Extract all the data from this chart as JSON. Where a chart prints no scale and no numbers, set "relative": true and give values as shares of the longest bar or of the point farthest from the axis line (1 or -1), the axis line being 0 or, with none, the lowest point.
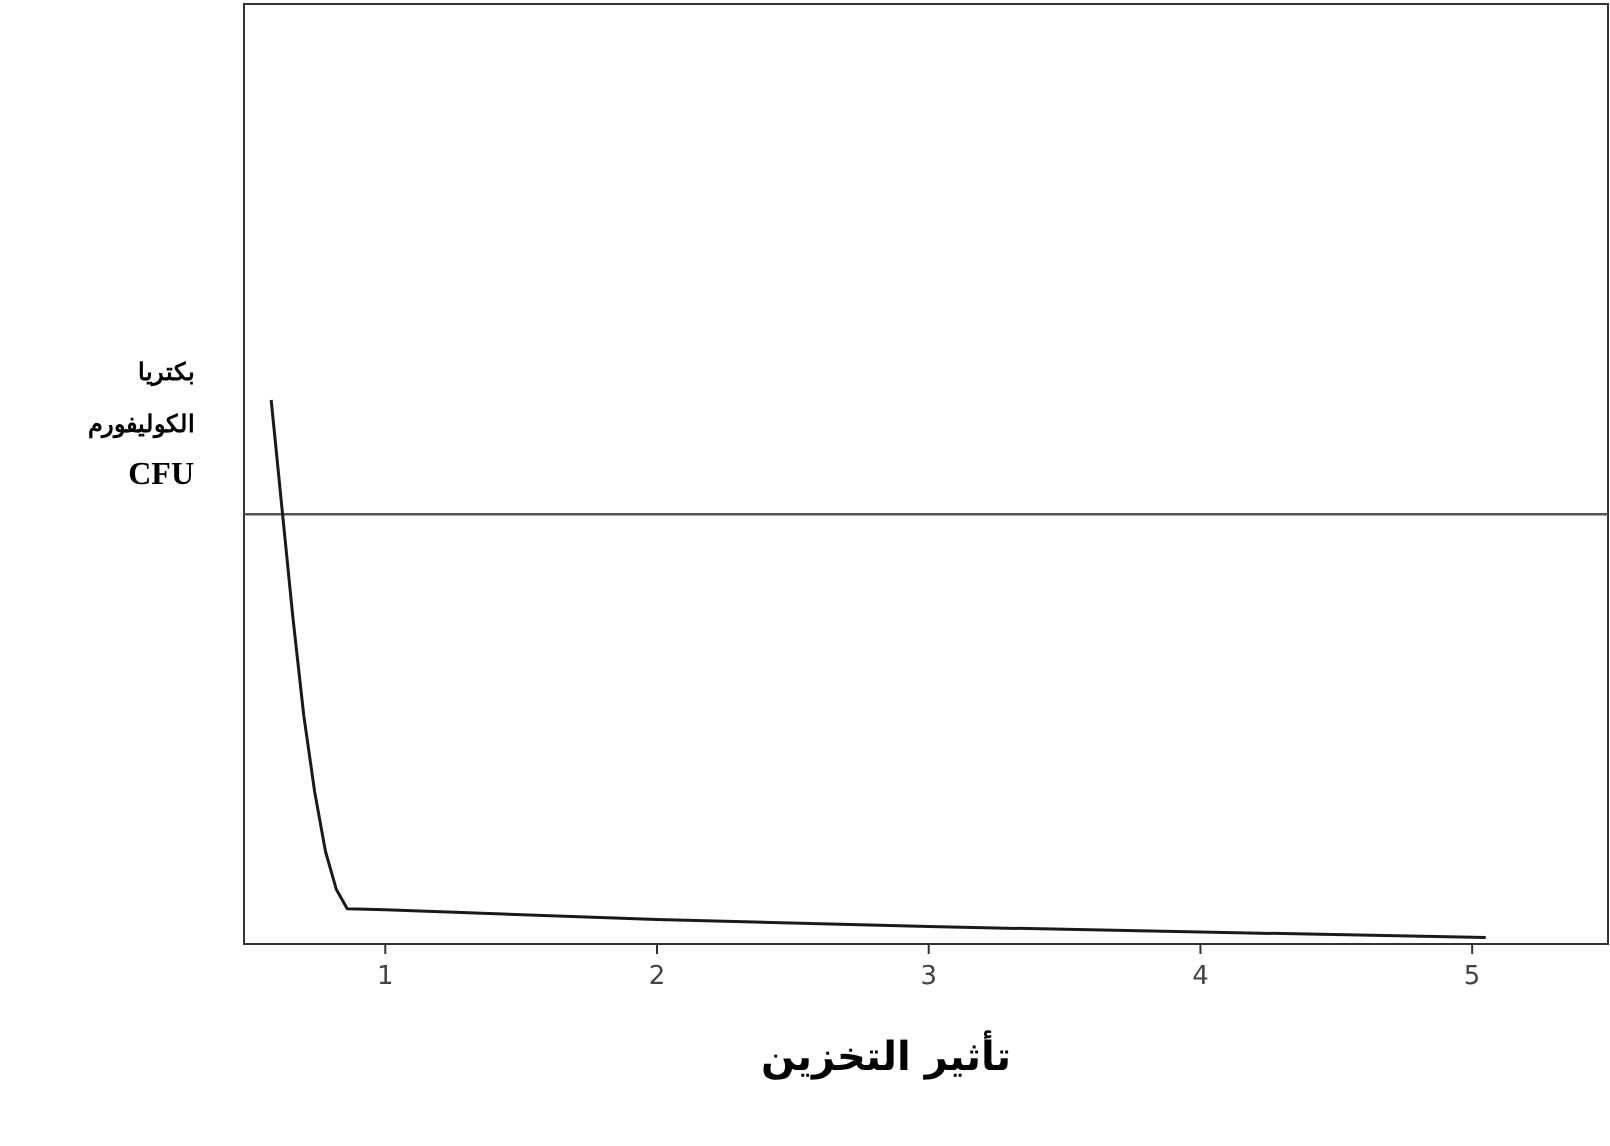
{
  "chart_data": {
    "type": "line",
    "relative": true,
    "xlabel": "تأثير التخزين",
    "ylabel": "بكتريا الكوليفورم CFU",
    "xlim": [
      0.48,
      5.5
    ],
    "xticks": [
      1,
      2,
      3,
      4,
      5
    ],
    "grid": false,
    "marker": "none",
    "line_style": "solid",
    "series": [
      {
        "color": "#1a1a1a",
        "x": [
          0.58,
          0.62,
          0.66,
          0.7,
          0.74,
          0.78,
          0.82,
          0.86,
          1,
          2,
          3,
          4,
          5.05
        ],
        "values": [
          1,
          0.8,
          0.6,
          0.42,
          0.28,
          0.17,
          0.1,
          0.065,
          0.063,
          0.045,
          0.032,
          0.022,
          0.012
        ]
      }
    ],
    "ref_lines": [
      {
        "axis": "y",
        "value": 0.79,
        "color": "#555555",
        "line_style": "solid"
      }
    ]
  }
}
